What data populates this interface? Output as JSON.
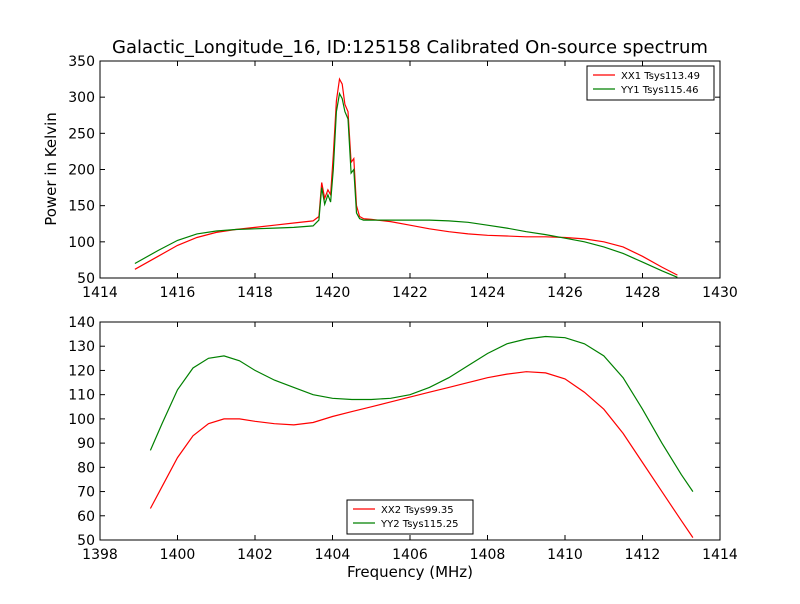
{
  "chart_data": [
    {
      "type": "line",
      "title": "Galactic_Longitude_16, ID:125158 Calibrated On-source spectrum",
      "xlabel": "",
      "ylabel": "Power in Kelvin",
      "xlim": [
        1414,
        1430
      ],
      "ylim": [
        50,
        350
      ],
      "xticks": [
        1414,
        1416,
        1418,
        1420,
        1422,
        1424,
        1426,
        1428,
        1430
      ],
      "yticks": [
        50,
        100,
        150,
        200,
        250,
        300,
        350
      ],
      "legend_position": "top-right",
      "grid": false,
      "series": [
        {
          "name": "XX1 Tsys113.49",
          "color": "#ff0000",
          "x": [
            1414.9,
            1415.5,
            1416.0,
            1416.5,
            1417.0,
            1417.5,
            1418.0,
            1418.5,
            1419.0,
            1419.5,
            1419.65,
            1419.72,
            1419.8,
            1419.88,
            1419.95,
            1420.02,
            1420.1,
            1420.18,
            1420.25,
            1420.32,
            1420.4,
            1420.48,
            1420.55,
            1420.62,
            1420.7,
            1420.8,
            1421.0,
            1421.5,
            1422.0,
            1422.5,
            1423.0,
            1423.5,
            1424.0,
            1424.5,
            1425.0,
            1425.5,
            1426.0,
            1426.5,
            1427.0,
            1427.5,
            1428.0,
            1428.5,
            1428.9
          ],
          "values": [
            62,
            80,
            95,
            106,
            113,
            117,
            120,
            123,
            126,
            129,
            135,
            182,
            160,
            172,
            165,
            220,
            295,
            325,
            318,
            290,
            280,
            210,
            215,
            150,
            135,
            132,
            131,
            128,
            123,
            118,
            114,
            111,
            109,
            108,
            107,
            107,
            106,
            104,
            100,
            93,
            80,
            65,
            54
          ]
        },
        {
          "name": "YY1 Tsys115.46",
          "color": "#008000",
          "x": [
            1414.9,
            1415.5,
            1416.0,
            1416.5,
            1417.0,
            1417.5,
            1418.0,
            1418.5,
            1419.0,
            1419.5,
            1419.65,
            1419.72,
            1419.8,
            1419.88,
            1419.95,
            1420.02,
            1420.1,
            1420.18,
            1420.25,
            1420.32,
            1420.4,
            1420.48,
            1420.55,
            1420.62,
            1420.7,
            1420.8,
            1421.0,
            1421.5,
            1422.0,
            1422.5,
            1423.0,
            1423.5,
            1424.0,
            1424.5,
            1425.0,
            1425.5,
            1426.0,
            1426.5,
            1427.0,
            1427.5,
            1428.0,
            1428.5,
            1428.9
          ],
          "values": [
            70,
            88,
            102,
            111,
            115,
            117,
            118,
            119,
            120,
            122,
            130,
            175,
            152,
            165,
            155,
            200,
            280,
            305,
            298,
            280,
            270,
            195,
            200,
            140,
            132,
            130,
            130,
            130,
            130,
            130,
            129,
            127,
            123,
            119,
            114,
            110,
            105,
            100,
            93,
            84,
            72,
            60,
            51
          ]
        }
      ]
    },
    {
      "type": "line",
      "title": "",
      "xlabel": "Frequency (MHz)",
      "ylabel": "",
      "xlim": [
        1398,
        1414
      ],
      "ylim": [
        50,
        140
      ],
      "xticks": [
        1398,
        1400,
        1402,
        1404,
        1406,
        1408,
        1410,
        1412,
        1414
      ],
      "yticks": [
        50,
        60,
        70,
        80,
        90,
        100,
        110,
        120,
        130,
        140
      ],
      "legend_position": "bottom-center",
      "grid": false,
      "series": [
        {
          "name": "XX2 Tsys99.35",
          "color": "#ff0000",
          "x": [
            1399.3,
            1399.6,
            1400.0,
            1400.4,
            1400.8,
            1401.2,
            1401.6,
            1402.0,
            1402.5,
            1403.0,
            1403.5,
            1404.0,
            1404.5,
            1405.0,
            1405.5,
            1406.0,
            1406.5,
            1407.0,
            1407.5,
            1408.0,
            1408.5,
            1409.0,
            1409.5,
            1410.0,
            1410.5,
            1411.0,
            1411.5,
            1412.0,
            1412.5,
            1413.0,
            1413.3
          ],
          "values": [
            63,
            72,
            84,
            93,
            98,
            100,
            100,
            99,
            98,
            97.5,
            98.5,
            101,
            103,
            105,
            107,
            109,
            111,
            113,
            115,
            117,
            118.5,
            119.5,
            119,
            116.5,
            111,
            104,
            94,
            82,
            70,
            58,
            51
          ]
        },
        {
          "name": "YY2 Tsys115.25",
          "color": "#008000",
          "x": [
            1399.3,
            1399.6,
            1400.0,
            1400.4,
            1400.8,
            1401.2,
            1401.6,
            1402.0,
            1402.5,
            1403.0,
            1403.5,
            1404.0,
            1404.5,
            1405.0,
            1405.5,
            1406.0,
            1406.5,
            1407.0,
            1407.5,
            1408.0,
            1408.5,
            1409.0,
            1409.5,
            1410.0,
            1410.5,
            1411.0,
            1411.5,
            1412.0,
            1412.5,
            1413.0,
            1413.3
          ],
          "values": [
            87,
            98,
            112,
            121,
            125,
            126,
            124,
            120,
            116,
            113,
            110,
            108.5,
            108,
            108,
            108.5,
            110,
            113,
            117,
            122,
            127,
            131,
            133,
            134,
            133.5,
            131,
            126,
            117,
            104,
            90,
            77,
            70
          ]
        }
      ]
    }
  ]
}
